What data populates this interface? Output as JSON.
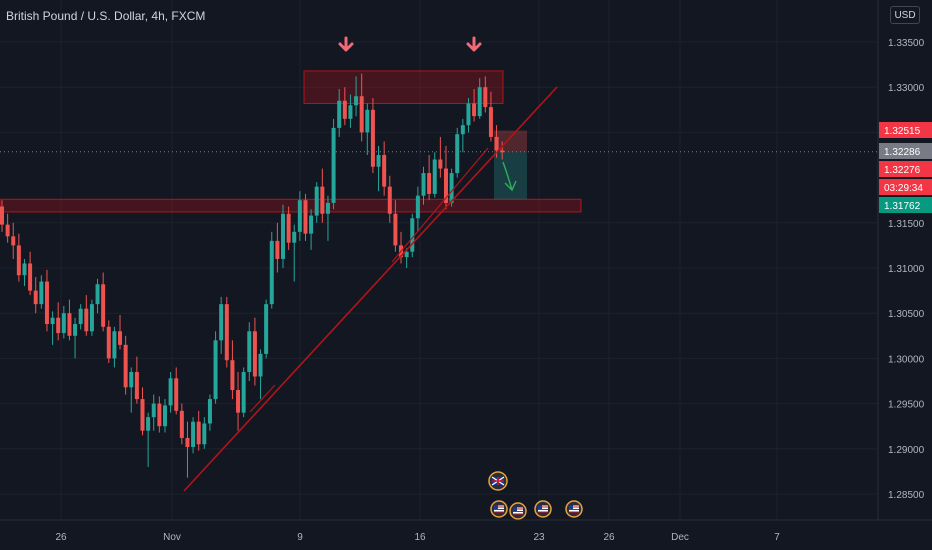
{
  "header": {
    "title": "British Pound / U.S. Dollar, 4h, FXCM",
    "currency_button": "USD"
  },
  "colors": {
    "background": "#131722",
    "grid": "#1e222d",
    "candle_up": "#26a69a",
    "candle_down": "#ef5350",
    "drawing_red": "#b2141a",
    "arrow_pink": "#f06a77",
    "arrow_green": "#2fae5a",
    "axis_text": "#b2b5be"
  },
  "icons": [
    "red-arrow-down-icon",
    "red-arrow-down-icon",
    "green-arrow-down-icon",
    "uk-flag-icon",
    "us-flag-icon"
  ],
  "chart_data": {
    "type": "candlestick",
    "title": "British Pound / U.S. Dollar, 4h, FXCM",
    "y_axis": {
      "ticks": [
        "1.33500",
        "1.33000",
        "1.32500",
        "1.31500",
        "1.31000",
        "1.30500",
        "1.30000",
        "1.29500",
        "1.29000",
        "1.28500"
      ],
      "ylim": [
        1.282,
        1.337
      ]
    },
    "x_axis": {
      "ticks": [
        "26",
        "Nov",
        "9",
        "16",
        "23",
        "26",
        "Dec",
        "7"
      ]
    },
    "price_labels": [
      {
        "name": "price-label-upper",
        "value": "1.32515",
        "color": "#f23645"
      },
      {
        "name": "price-label-last",
        "value": "1.32286",
        "color": "#787b86"
      },
      {
        "name": "price-label-close",
        "value": "1.32276",
        "color": "#f23645"
      },
      {
        "name": "countdown-label",
        "value": "03:29:34",
        "color": "#f23645"
      },
      {
        "name": "price-label-target",
        "value": "1.31762",
        "color": "#089981"
      }
    ],
    "last_price": 1.32286,
    "candles": [
      [
        1.3168,
        1.3175,
        1.314,
        1.3148
      ],
      [
        1.3148,
        1.316,
        1.3128,
        1.3135
      ],
      [
        1.3135,
        1.315,
        1.311,
        1.3125
      ],
      [
        1.3125,
        1.3138,
        1.3085,
        1.3092
      ],
      [
        1.3092,
        1.311,
        1.308,
        1.3105
      ],
      [
        1.3105,
        1.3118,
        1.307,
        1.3075
      ],
      [
        1.3075,
        1.309,
        1.305,
        1.306
      ],
      [
        1.306,
        1.3092,
        1.3055,
        1.3085
      ],
      [
        1.3085,
        1.3098,
        1.303,
        1.3038
      ],
      [
        1.3038,
        1.3052,
        1.3015,
        1.3045
      ],
      [
        1.3045,
        1.3062,
        1.302,
        1.3028
      ],
      [
        1.3028,
        1.3058,
        1.3022,
        1.305
      ],
      [
        1.305,
        1.3065,
        1.302,
        1.3025
      ],
      [
        1.3025,
        1.3045,
        1.3,
        1.3038
      ],
      [
        1.3038,
        1.306,
        1.3032,
        1.3055
      ],
      [
        1.3055,
        1.307,
        1.3025,
        1.303
      ],
      [
        1.303,
        1.3065,
        1.3025,
        1.306
      ],
      [
        1.306,
        1.3088,
        1.305,
        1.3082
      ],
      [
        1.3082,
        1.3095,
        1.303,
        1.3035
      ],
      [
        1.3035,
        1.3042,
        1.2995,
        1.3
      ],
      [
        1.3,
        1.3035,
        1.299,
        1.303
      ],
      [
        1.303,
        1.3048,
        1.301,
        1.3015
      ],
      [
        1.3015,
        1.3025,
        1.296,
        1.2968
      ],
      [
        1.2968,
        1.299,
        1.294,
        1.2985
      ],
      [
        1.2985,
        1.3002,
        1.295,
        1.2955
      ],
      [
        1.2955,
        1.2968,
        1.2915,
        1.292
      ],
      [
        1.292,
        1.294,
        1.288,
        1.2935
      ],
      [
        1.2935,
        1.296,
        1.292,
        1.295
      ],
      [
        1.295,
        1.2958,
        1.2918,
        1.2925
      ],
      [
        1.2925,
        1.2955,
        1.2918,
        1.2948
      ],
      [
        1.2948,
        1.2985,
        1.294,
        1.2978
      ],
      [
        1.2978,
        1.299,
        1.2938,
        1.2942
      ],
      [
        1.2942,
        1.295,
        1.2905,
        1.2912
      ],
      [
        1.2912,
        1.293,
        1.2868,
        1.2902
      ],
      [
        1.2902,
        1.2935,
        1.2895,
        1.293
      ],
      [
        1.293,
        1.2942,
        1.2898,
        1.2905
      ],
      [
        1.2905,
        1.2935,
        1.29,
        1.2928
      ],
      [
        1.2928,
        1.296,
        1.292,
        1.2955
      ],
      [
        1.2955,
        1.303,
        1.295,
        1.302
      ],
      [
        1.302,
        1.3068,
        1.3005,
        1.306
      ],
      [
        1.306,
        1.3068,
        1.299,
        1.2998
      ],
      [
        1.2998,
        1.302,
        1.2955,
        1.2965
      ],
      [
        1.2965,
        1.2985,
        1.292,
        1.294
      ],
      [
        1.294,
        1.299,
        1.2935,
        1.2985
      ],
      [
        1.2985,
        1.304,
        1.2975,
        1.303
      ],
      [
        1.303,
        1.3045,
        1.297,
        1.298
      ],
      [
        1.298,
        1.301,
        1.2955,
        1.3005
      ],
      [
        1.3005,
        1.3065,
        1.3,
        1.306
      ],
      [
        1.306,
        1.314,
        1.3055,
        1.313
      ],
      [
        1.313,
        1.315,
        1.3095,
        1.311
      ],
      [
        1.311,
        1.317,
        1.31,
        1.316
      ],
      [
        1.316,
        1.3168,
        1.312,
        1.3128
      ],
      [
        1.3128,
        1.3148,
        1.3085,
        1.314
      ],
      [
        1.314,
        1.3185,
        1.313,
        1.3175
      ],
      [
        1.3175,
        1.3182,
        1.313,
        1.3138
      ],
      [
        1.3138,
        1.3165,
        1.312,
        1.3158
      ],
      [
        1.3158,
        1.3195,
        1.315,
        1.319
      ],
      [
        1.319,
        1.321,
        1.315,
        1.316
      ],
      [
        1.316,
        1.318,
        1.313,
        1.3172
      ],
      [
        1.3172,
        1.3265,
        1.3165,
        1.3255
      ],
      [
        1.3255,
        1.3298,
        1.3245,
        1.3285
      ],
      [
        1.3285,
        1.33,
        1.3258,
        1.3265
      ],
      [
        1.3265,
        1.3292,
        1.3255,
        1.328
      ],
      [
        1.328,
        1.3312,
        1.3268,
        1.329
      ],
      [
        1.329,
        1.3315,
        1.324,
        1.325
      ],
      [
        1.325,
        1.3282,
        1.3225,
        1.3275
      ],
      [
        1.3275,
        1.3288,
        1.3205,
        1.3212
      ],
      [
        1.3212,
        1.3235,
        1.3185,
        1.3225
      ],
      [
        1.3225,
        1.324,
        1.318,
        1.319
      ],
      [
        1.319,
        1.3202,
        1.315,
        1.316
      ],
      [
        1.316,
        1.3175,
        1.3118,
        1.3125
      ],
      [
        1.3125,
        1.314,
        1.3105,
        1.3112
      ],
      [
        1.3112,
        1.3122,
        1.31,
        1.3118
      ],
      [
        1.3118,
        1.316,
        1.3112,
        1.3155
      ],
      [
        1.3155,
        1.319,
        1.314,
        1.318
      ],
      [
        1.318,
        1.3212,
        1.317,
        1.3205
      ],
      [
        1.3205,
        1.3225,
        1.3175,
        1.3182
      ],
      [
        1.3182,
        1.3228,
        1.3178,
        1.322
      ],
      [
        1.322,
        1.3245,
        1.32,
        1.321
      ],
      [
        1.321,
        1.3235,
        1.3165,
        1.3172
      ],
      [
        1.3172,
        1.321,
        1.3168,
        1.3205
      ],
      [
        1.3205,
        1.3255,
        1.32,
        1.3248
      ],
      [
        1.3248,
        1.3265,
        1.3228,
        1.3258
      ],
      [
        1.3258,
        1.3288,
        1.325,
        1.3282
      ],
      [
        1.3282,
        1.3298,
        1.3262,
        1.3268
      ],
      [
        1.3268,
        1.331,
        1.3265,
        1.33
      ],
      [
        1.33,
        1.3312,
        1.3272,
        1.3278
      ],
      [
        1.3278,
        1.3295,
        1.324,
        1.3245
      ],
      [
        1.3245,
        1.3258,
        1.3222,
        1.323
      ],
      [
        1.323,
        1.324,
        1.322,
        1.3228
      ]
    ],
    "annotations": [
      {
        "type": "resistance-zone",
        "price_top": 1.3318,
        "price_bottom": 1.3282
      },
      {
        "type": "support-zone",
        "price_top": 1.3176,
        "price_bottom": 1.3162
      },
      {
        "type": "trendline",
        "from_price": 1.2855,
        "to_price": 1.33
      },
      {
        "type": "short-position",
        "entry": 1.3228,
        "stop": 1.3252,
        "target": 1.3176
      }
    ]
  }
}
